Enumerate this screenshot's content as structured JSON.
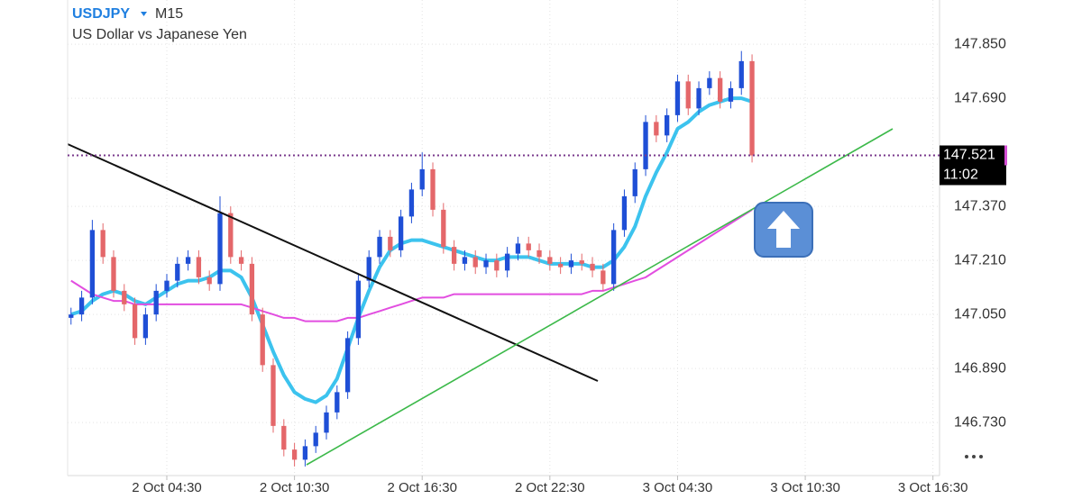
{
  "chart_data": {
    "type": "candlestick",
    "symbol": "USDJPY",
    "timeframe": "M15",
    "subtitle": "US Dollar vs Japanese Yen",
    "x": [
      0,
      0.5,
      1,
      1.5,
      2,
      2.5,
      3,
      3.5,
      4,
      4.5,
      5,
      5.5,
      6,
      6.5,
      7,
      7.5,
      8,
      8.5,
      9,
      9.5,
      10,
      10.5,
      11,
      11.5,
      12,
      12.5,
      13,
      13.5,
      14,
      14.5,
      15,
      15.5,
      16,
      16.5,
      17,
      17.5,
      18,
      18.5,
      19,
      19.5,
      20,
      20.5,
      21,
      21.5,
      22,
      22.5,
      23,
      23.5,
      24,
      24.5,
      25,
      25.5,
      26,
      26.5,
      27,
      27.5,
      28,
      28.5,
      29,
      29.5,
      30,
      30.5,
      31,
      31.5,
      32
    ],
    "open": [
      147.04,
      147.05,
      147.1,
      147.3,
      147.22,
      147.12,
      147.08,
      146.98,
      147.05,
      147.12,
      147.15,
      147.2,
      147.22,
      147.16,
      147.14,
      147.35,
      147.22,
      147.2,
      147.05,
      146.9,
      146.72,
      146.65,
      146.62,
      146.66,
      146.7,
      146.76,
      146.82,
      146.98,
      147.15,
      147.22,
      147.28,
      147.24,
      147.34,
      147.42,
      147.48,
      147.36,
      147.25,
      147.2,
      147.22,
      147.19,
      147.21,
      147.18,
      147.23,
      147.26,
      147.24,
      147.22,
      147.2,
      147.19,
      147.21,
      147.2,
      147.18,
      147.14,
      147.3,
      147.4,
      147.48,
      147.62,
      147.58,
      147.64,
      147.74,
      147.66,
      147.72,
      147.75,
      147.68,
      147.72,
      147.8
    ],
    "high": [
      147.07,
      147.12,
      147.33,
      147.32,
      147.24,
      147.14,
      147.1,
      147.07,
      147.14,
      147.17,
      147.22,
      147.24,
      147.24,
      147.18,
      147.4,
      147.37,
      147.24,
      147.22,
      147.07,
      146.92,
      146.74,
      146.67,
      146.68,
      146.72,
      146.78,
      146.84,
      147.0,
      147.17,
      147.24,
      147.3,
      147.3,
      147.36,
      147.44,
      147.53,
      147.5,
      147.38,
      147.27,
      147.24,
      147.24,
      147.23,
      147.23,
      147.25,
      147.28,
      147.28,
      147.26,
      147.24,
      147.22,
      147.23,
      147.23,
      147.22,
      147.2,
      147.32,
      147.42,
      147.5,
      147.64,
      147.64,
      147.66,
      147.76,
      147.76,
      147.74,
      147.77,
      147.77,
      147.74,
      147.83,
      147.82
    ],
    "low": [
      147.02,
      147.03,
      147.08,
      147.2,
      147.1,
      147.06,
      146.96,
      146.96,
      147.03,
      147.1,
      147.13,
      147.18,
      147.14,
      147.12,
      147.12,
      147.2,
      147.18,
      147.03,
      146.88,
      146.7,
      146.63,
      146.6,
      146.6,
      146.64,
      146.68,
      146.74,
      146.8,
      146.96,
      147.13,
      147.2,
      147.22,
      147.22,
      147.32,
      147.4,
      147.34,
      147.23,
      147.18,
      147.18,
      147.17,
      147.17,
      147.16,
      147.16,
      147.21,
      147.22,
      147.2,
      147.18,
      147.17,
      147.17,
      147.18,
      147.16,
      147.12,
      147.12,
      147.28,
      147.38,
      147.46,
      147.56,
      147.56,
      147.62,
      147.64,
      147.64,
      147.7,
      147.66,
      147.66,
      147.7,
      147.5
    ],
    "close": [
      147.05,
      147.1,
      147.3,
      147.22,
      147.12,
      147.08,
      146.98,
      147.05,
      147.12,
      147.15,
      147.2,
      147.22,
      147.16,
      147.14,
      147.35,
      147.22,
      147.2,
      147.05,
      146.9,
      146.72,
      146.65,
      146.62,
      146.66,
      146.7,
      146.76,
      146.82,
      146.98,
      147.15,
      147.22,
      147.28,
      147.24,
      147.34,
      147.42,
      147.48,
      147.36,
      147.25,
      147.2,
      147.22,
      147.19,
      147.21,
      147.18,
      147.23,
      147.26,
      147.24,
      147.22,
      147.2,
      147.19,
      147.21,
      147.2,
      147.18,
      147.14,
      147.3,
      147.4,
      147.48,
      147.62,
      147.58,
      147.64,
      147.74,
      147.66,
      147.72,
      147.75,
      147.68,
      147.72,
      147.8,
      147.521
    ],
    "up_color": "#1f4fd6",
    "down_color": "#e4676a",
    "series": [
      {
        "color": "#3cc3ee",
        "values": [
          147.05,
          147.06,
          147.09,
          147.11,
          147.12,
          147.11,
          147.09,
          147.08,
          147.1,
          147.12,
          147.14,
          147.15,
          147.15,
          147.16,
          147.18,
          147.18,
          147.16,
          147.1,
          147.02,
          146.94,
          146.87,
          146.82,
          146.8,
          146.79,
          146.81,
          146.86,
          146.95,
          147.04,
          147.12,
          147.19,
          147.24,
          147.26,
          147.27,
          147.27,
          147.26,
          147.25,
          147.24,
          147.23,
          147.22,
          147.21,
          147.21,
          147.22,
          147.22,
          147.22,
          147.21,
          147.2,
          147.2,
          147.2,
          147.2,
          147.19,
          147.19,
          147.21,
          147.25,
          147.31,
          147.4,
          147.47,
          147.53,
          147.6,
          147.62,
          147.65,
          147.67,
          147.68,
          147.69,
          147.69,
          147.68
        ]
      },
      {
        "color": "#e24ee0",
        "values": [
          147.15,
          147.13,
          147.11,
          147.1,
          147.09,
          147.09,
          147.08,
          147.08,
          147.08,
          147.08,
          147.08,
          147.08,
          147.08,
          147.08,
          147.08,
          147.08,
          147.08,
          147.07,
          147.06,
          147.05,
          147.04,
          147.04,
          147.03,
          147.03,
          147.03,
          147.03,
          147.04,
          147.04,
          147.05,
          147.06,
          147.07,
          147.08,
          147.09,
          147.1,
          147.1,
          147.1,
          147.11,
          147.11,
          147.11,
          147.11,
          147.11,
          147.11,
          147.11,
          147.11,
          147.11,
          147.11,
          147.11,
          147.11,
          147.11,
          147.12,
          147.12,
          147.13,
          147.14,
          147.15,
          147.16,
          147.18,
          147.2,
          147.22,
          147.24,
          147.26,
          147.28,
          147.3,
          147.32,
          147.34,
          147.36
        ]
      }
    ],
    "last_price": 147.521,
    "countdown": "11:02",
    "xlim": [
      -0.16,
      40.81
    ],
    "xticks": [
      {
        "value": 4.5,
        "label": "2 Oct 04:30"
      },
      {
        "value": 10.5,
        "label": "2 Oct 10:30"
      },
      {
        "value": 16.5,
        "label": "2 Oct 16:30"
      },
      {
        "value": 22.5,
        "label": "2 Oct 22:30"
      },
      {
        "value": 28.5,
        "label": "3 Oct 04:30"
      },
      {
        "value": 34.5,
        "label": "3 Oct 10:30"
      },
      {
        "value": 40.5,
        "label": "3 Oct 16:30"
      }
    ],
    "ylim": [
      146.573,
      147.981
    ],
    "yticks": [
      {
        "value": 146.73,
        "label": "146.730"
      },
      {
        "value": 146.89,
        "label": "146.890"
      },
      {
        "value": 147.05,
        "label": "147.050"
      },
      {
        "value": 147.21,
        "label": "147.210"
      },
      {
        "value": 147.37,
        "label": "147.370"
      },
      {
        "value": 147.69,
        "label": "147.690"
      },
      {
        "value": 147.85,
        "label": "147.850"
      }
    ],
    "grid": true
  }
}
